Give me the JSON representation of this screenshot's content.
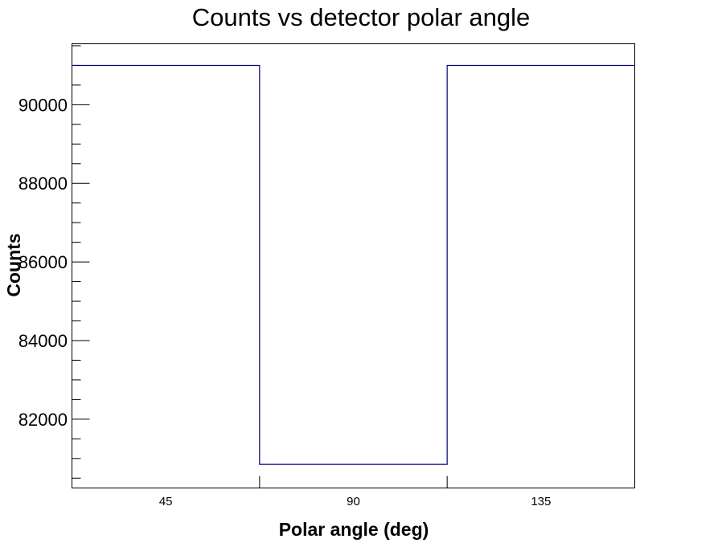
{
  "chart_data": {
    "type": "bar",
    "title": "Counts vs detector polar angle",
    "xlabel": "Polar angle (deg)",
    "ylabel": "Counts",
    "categories": [
      "45",
      "90",
      "135"
    ],
    "values": [
      91000,
      80850,
      91000
    ],
    "ylim": [
      80250,
      91550
    ],
    "yticks": [
      82000,
      84000,
      86000,
      88000,
      90000
    ],
    "line_color": "#000080",
    "grid": false,
    "legend": "none"
  }
}
